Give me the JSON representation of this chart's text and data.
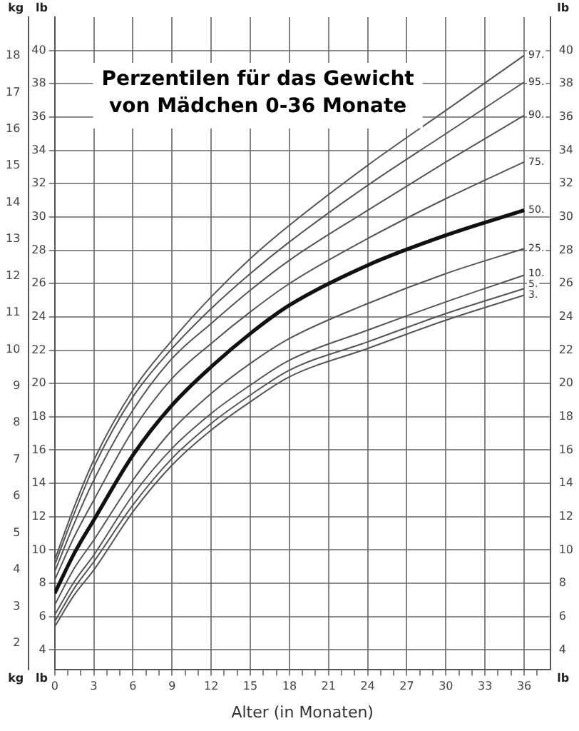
{
  "chart_data": {
    "type": "line",
    "title": "Perzentilen für das Gewicht von Mädchen 0-36 Monate",
    "xlabel": "Alter (in Monaten)",
    "ylabel": "lb",
    "y2label": "lb",
    "y3label": "kg",
    "x": [
      0,
      1.5,
      3,
      6,
      9,
      12,
      15,
      18,
      24,
      30,
      36
    ],
    "series": [
      {
        "name": "97.",
        "color": "#555555",
        "values": [
          9.4,
          12.6,
          15.4,
          19.6,
          22.6,
          25.2,
          27.5,
          29.5,
          33.1,
          36.4,
          39.7
        ]
      },
      {
        "name": "95.",
        "color": "#555555",
        "values": [
          9.1,
          12.2,
          15.0,
          19.2,
          22.1,
          24.5,
          26.6,
          28.5,
          31.9,
          35.0,
          38.1
        ]
      },
      {
        "name": "90.",
        "color": "#555555",
        "values": [
          8.7,
          11.6,
          14.2,
          18.4,
          21.5,
          23.6,
          25.6,
          27.4,
          30.4,
          33.3,
          36.1
        ]
      },
      {
        "name": "75.",
        "color": "#555555",
        "values": [
          8.2,
          10.8,
          13.0,
          17.2,
          20.3,
          22.4,
          24.3,
          26.0,
          28.7,
          31.1,
          33.3
        ]
      },
      {
        "name": "50.",
        "color": "#111111",
        "values": [
          7.4,
          9.8,
          11.8,
          15.7,
          18.7,
          21.0,
          23.0,
          24.7,
          27.1,
          28.9,
          30.4
        ]
      },
      {
        "name": "25.",
        "color": "#555555",
        "values": [
          6.7,
          8.9,
          10.6,
          14.2,
          17.2,
          19.4,
          21.2,
          22.7,
          24.8,
          26.6,
          28.1
        ]
      },
      {
        "name": "10.",
        "color": "#555555",
        "values": [
          6.1,
          8.1,
          9.7,
          13.3,
          16.1,
          18.2,
          19.9,
          21.4,
          23.2,
          24.9,
          26.5
        ]
      },
      {
        "name": "5.",
        "color": "#555555",
        "values": [
          5.7,
          7.7,
          9.3,
          12.7,
          15.5,
          17.6,
          19.3,
          20.8,
          22.5,
          24.2,
          25.7
        ]
      },
      {
        "name": "3.",
        "color": "#555555",
        "values": [
          5.4,
          7.3,
          8.8,
          12.3,
          15.1,
          17.2,
          18.9,
          20.4,
          22.1,
          23.8,
          25.3
        ]
      }
    ],
    "xlim": [
      0,
      38
    ],
    "xticks": [
      0,
      {
        "value": 1,
        "label": null
      },
      {
        "value": 2,
        "label": null
      },
      3,
      {
        "value": 4,
        "label": null
      },
      {
        "value": 5,
        "label": null
      },
      6,
      {
        "value": 7,
        "label": null
      },
      {
        "value": 8,
        "label": null
      },
      9,
      {
        "value": 10,
        "label": null
      },
      {
        "value": 11,
        "label": null
      },
      12,
      {
        "value": 13,
        "label": null
      },
      {
        "value": 14,
        "label": null
      },
      15,
      {
        "value": 16,
        "label": null
      },
      {
        "value": 17,
        "label": null
      },
      18,
      {
        "value": 19,
        "label": null
      },
      {
        "value": 20,
        "label": null
      },
      21,
      {
        "value": 22,
        "label": null
      },
      {
        "value": 23,
        "label": null
      },
      24,
      {
        "value": 25,
        "label": null
      },
      {
        "value": 26,
        "label": null
      },
      27,
      {
        "value": 28,
        "label": null
      },
      {
        "value": 29,
        "label": null
      },
      30,
      {
        "value": 31,
        "label": null
      },
      {
        "value": 32,
        "label": null
      },
      33,
      {
        "value": 34,
        "label": null
      },
      {
        "value": 35,
        "label": null
      },
      36,
      {
        "value": 37,
        "label": null
      }
    ],
    "ylim": [
      2.8,
      42
    ],
    "yticks": [
      4,
      6,
      8,
      10,
      12,
      14,
      16,
      18,
      20,
      22,
      24,
      26,
      28,
      30,
      32,
      34,
      36,
      38,
      40
    ],
    "y2lim": [
      2.8,
      42
    ],
    "y2ticks": [
      4,
      6,
      8,
      10,
      12,
      14,
      16,
      18,
      20,
      22,
      24,
      26,
      28,
      30,
      32,
      34,
      36,
      38,
      40
    ],
    "y3lim": [
      1.27,
      19.05
    ],
    "y3ticks": [
      2,
      3,
      4,
      5,
      6,
      7,
      8,
      9,
      10,
      11,
      12,
      13,
      14,
      15,
      16,
      17,
      18
    ],
    "grid": true,
    "legend": false,
    "marker": "none",
    "line_style": "solid"
  }
}
